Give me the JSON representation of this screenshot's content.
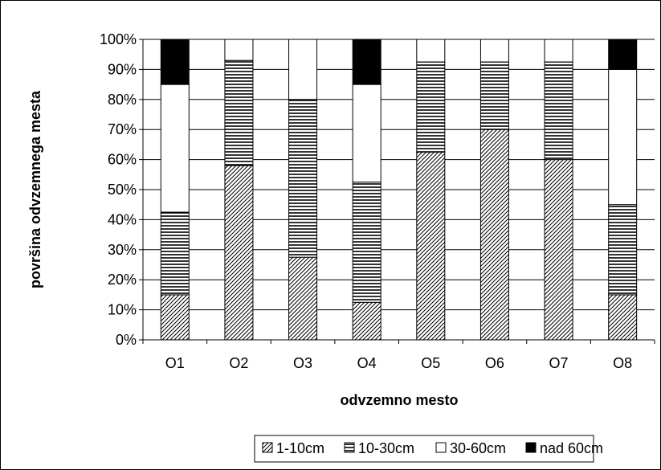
{
  "chart_data": {
    "type": "bar",
    "stacked": "percent",
    "title": "",
    "xlabel": "odvzemno mesto",
    "ylabel": "površina odvzemnega mesta",
    "categories": [
      "O1",
      "O2",
      "O3",
      "O4",
      "O5",
      "O6",
      "O7",
      "O8"
    ],
    "y_ticks": [
      "0%",
      "10%",
      "20%",
      "30%",
      "40%",
      "50%",
      "60%",
      "70%",
      "80%",
      "90%",
      "100%"
    ],
    "ylim": [
      0,
      100
    ],
    "grid": true,
    "legend_position": "bottom",
    "series": [
      {
        "name": "1-10cm",
        "pattern": "diagonal-hatch",
        "values": [
          15,
          58,
          27.5,
          12.5,
          62.5,
          70,
          60,
          15
        ]
      },
      {
        "name": "10-30cm",
        "pattern": "horizontal-lines",
        "values": [
          27.5,
          35,
          52.5,
          40,
          30,
          22.5,
          32.5,
          30
        ]
      },
      {
        "name": "30-60cm",
        "pattern": "white",
        "values": [
          42.5,
          7,
          20,
          32.5,
          7.5,
          7.5,
          7.5,
          45
        ]
      },
      {
        "name": "nad 60cm",
        "pattern": "black",
        "values": [
          15,
          0,
          0,
          15,
          0,
          0,
          0,
          10
        ]
      }
    ]
  }
}
